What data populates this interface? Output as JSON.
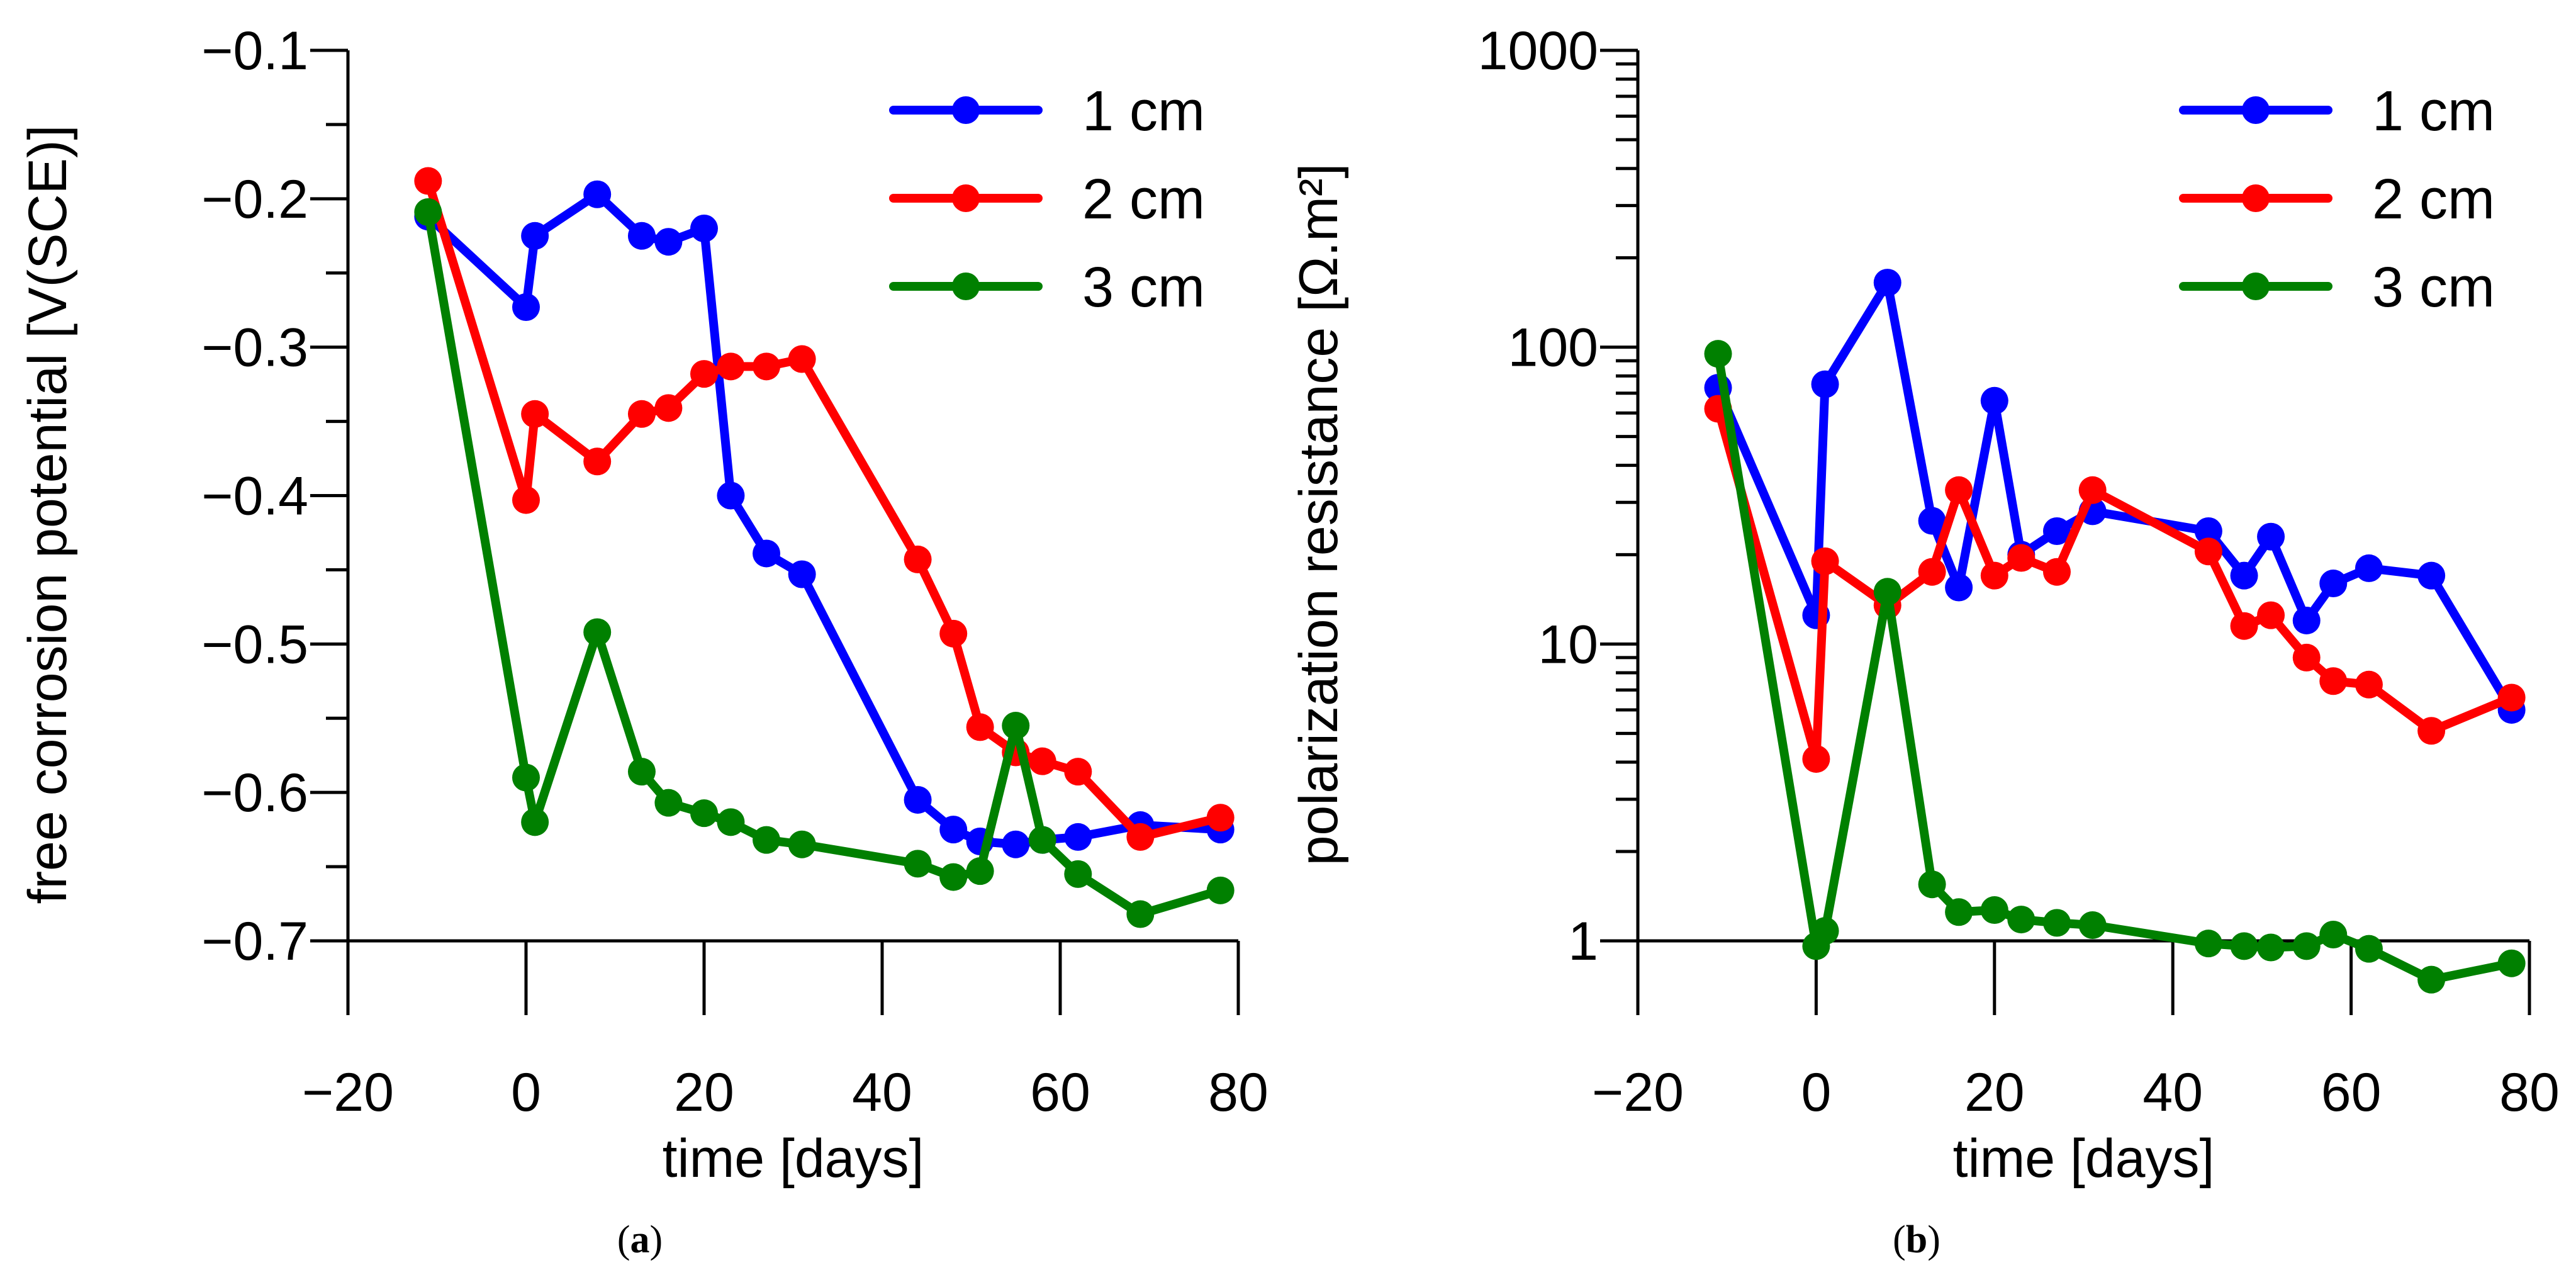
{
  "chart_data": [
    {
      "type": "line",
      "panel_label": "a",
      "title": "",
      "xlabel": "time [days]",
      "ylabel": "free corrosion potential [V(SCE)]",
      "xlim": [
        -20,
        80
      ],
      "ylim": [
        -0.7,
        -0.1
      ],
      "yscale": "linear",
      "x_ticks": [
        -20,
        0,
        20,
        40,
        60,
        80
      ],
      "x_tick_labels": [
        "−20",
        "0",
        "20",
        "40",
        "60",
        "80"
      ],
      "y_ticks": [
        -0.7,
        -0.6,
        -0.5,
        -0.4,
        -0.3,
        -0.2,
        -0.1
      ],
      "y_tick_labels": [
        "−0.7",
        "−0.6",
        "−0.5",
        "−0.4",
        "−0.3",
        "−0.2",
        "−0.1"
      ],
      "y_minor_ticks": [
        -0.65,
        -0.55,
        -0.45,
        -0.35,
        -0.25,
        -0.15
      ],
      "legend_position": "top-right",
      "series": [
        {
          "name": "1 cm",
          "color": "#0000ff",
          "x": [
            -11,
            0,
            1,
            8,
            13,
            16,
            20,
            23,
            27,
            31,
            44,
            48,
            51,
            55,
            58,
            62,
            69,
            78
          ],
          "y": [
            -0.212,
            -0.273,
            -0.225,
            -0.197,
            -0.225,
            -0.229,
            -0.22,
            -0.4,
            -0.439,
            -0.453,
            -0.605,
            -0.625,
            -0.633,
            -0.635,
            -0.632,
            -0.63,
            -0.622,
            -0.625
          ]
        },
        {
          "name": "2 cm",
          "color": "#ff0000",
          "x": [
            -11,
            0,
            1,
            8,
            13,
            16,
            20,
            23,
            27,
            31,
            44,
            48,
            51,
            55,
            58,
            62,
            69,
            78
          ],
          "y": [
            -0.188,
            -0.403,
            -0.345,
            -0.377,
            -0.345,
            -0.341,
            -0.318,
            -0.313,
            -0.313,
            -0.308,
            -0.443,
            -0.493,
            -0.556,
            -0.573,
            -0.579,
            -0.586,
            -0.63,
            -0.617
          ]
        },
        {
          "name": "3 cm",
          "color": "#008000",
          "x": [
            -11,
            0,
            1,
            8,
            13,
            16,
            20,
            23,
            27,
            31,
            44,
            48,
            51,
            55,
            58,
            62,
            69,
            78
          ],
          "y": [
            -0.209,
            -0.59,
            -0.62,
            -0.492,
            -0.586,
            -0.607,
            -0.614,
            -0.62,
            -0.632,
            -0.635,
            -0.648,
            -0.657,
            -0.653,
            -0.555,
            -0.632,
            -0.655,
            -0.682,
            -0.666
          ]
        }
      ]
    },
    {
      "type": "line",
      "panel_label": "b",
      "title": "",
      "xlabel": "time [days]",
      "ylabel": "polarization resistance [Ω.m²]",
      "xlim": [
        -20,
        80
      ],
      "ylim": [
        1,
        1000
      ],
      "yscale": "log",
      "x_ticks": [
        -20,
        0,
        20,
        40,
        60,
        80
      ],
      "x_tick_labels": [
        "−20",
        "0",
        "20",
        "40",
        "60",
        "80"
      ],
      "y_ticks": [
        1,
        10,
        100,
        1000
      ],
      "y_tick_labels": [
        "1",
        "10",
        "100",
        "1000"
      ],
      "legend_position": "top-right",
      "series": [
        {
          "name": "1 cm",
          "color": "#0000ff",
          "x": [
            -11,
            0,
            1,
            8,
            13,
            16,
            20,
            23,
            27,
            31,
            44,
            48,
            51,
            55,
            58,
            62,
            69,
            78
          ],
          "y": [
            73,
            12.5,
            75,
            165,
            26,
            15.5,
            66,
            20,
            24,
            28,
            24,
            17,
            23,
            12,
            16,
            18,
            17,
            6
          ]
        },
        {
          "name": "2 cm",
          "color": "#ff0000",
          "x": [
            -11,
            0,
            1,
            8,
            13,
            16,
            20,
            23,
            27,
            31,
            44,
            48,
            51,
            55,
            58,
            62,
            69,
            78
          ],
          "y": [
            62,
            4.1,
            19,
            13.5,
            17.5,
            33,
            17,
            19.5,
            17.5,
            33,
            20.5,
            11.5,
            12.5,
            9,
            7.5,
            7.3,
            5.1,
            6.6
          ]
        },
        {
          "name": "3 cm",
          "color": "#008000",
          "x": [
            -11,
            0,
            1,
            8,
            13,
            16,
            20,
            23,
            27,
            31,
            44,
            48,
            51,
            55,
            58,
            62,
            69,
            78
          ],
          "y": [
            95,
            0.96,
            1.08,
            15,
            1.55,
            1.25,
            1.27,
            1.18,
            1.15,
            1.13,
            0.98,
            0.96,
            0.95,
            0.96,
            1.05,
            0.94,
            0.74,
            0.84
          ]
        }
      ]
    }
  ]
}
